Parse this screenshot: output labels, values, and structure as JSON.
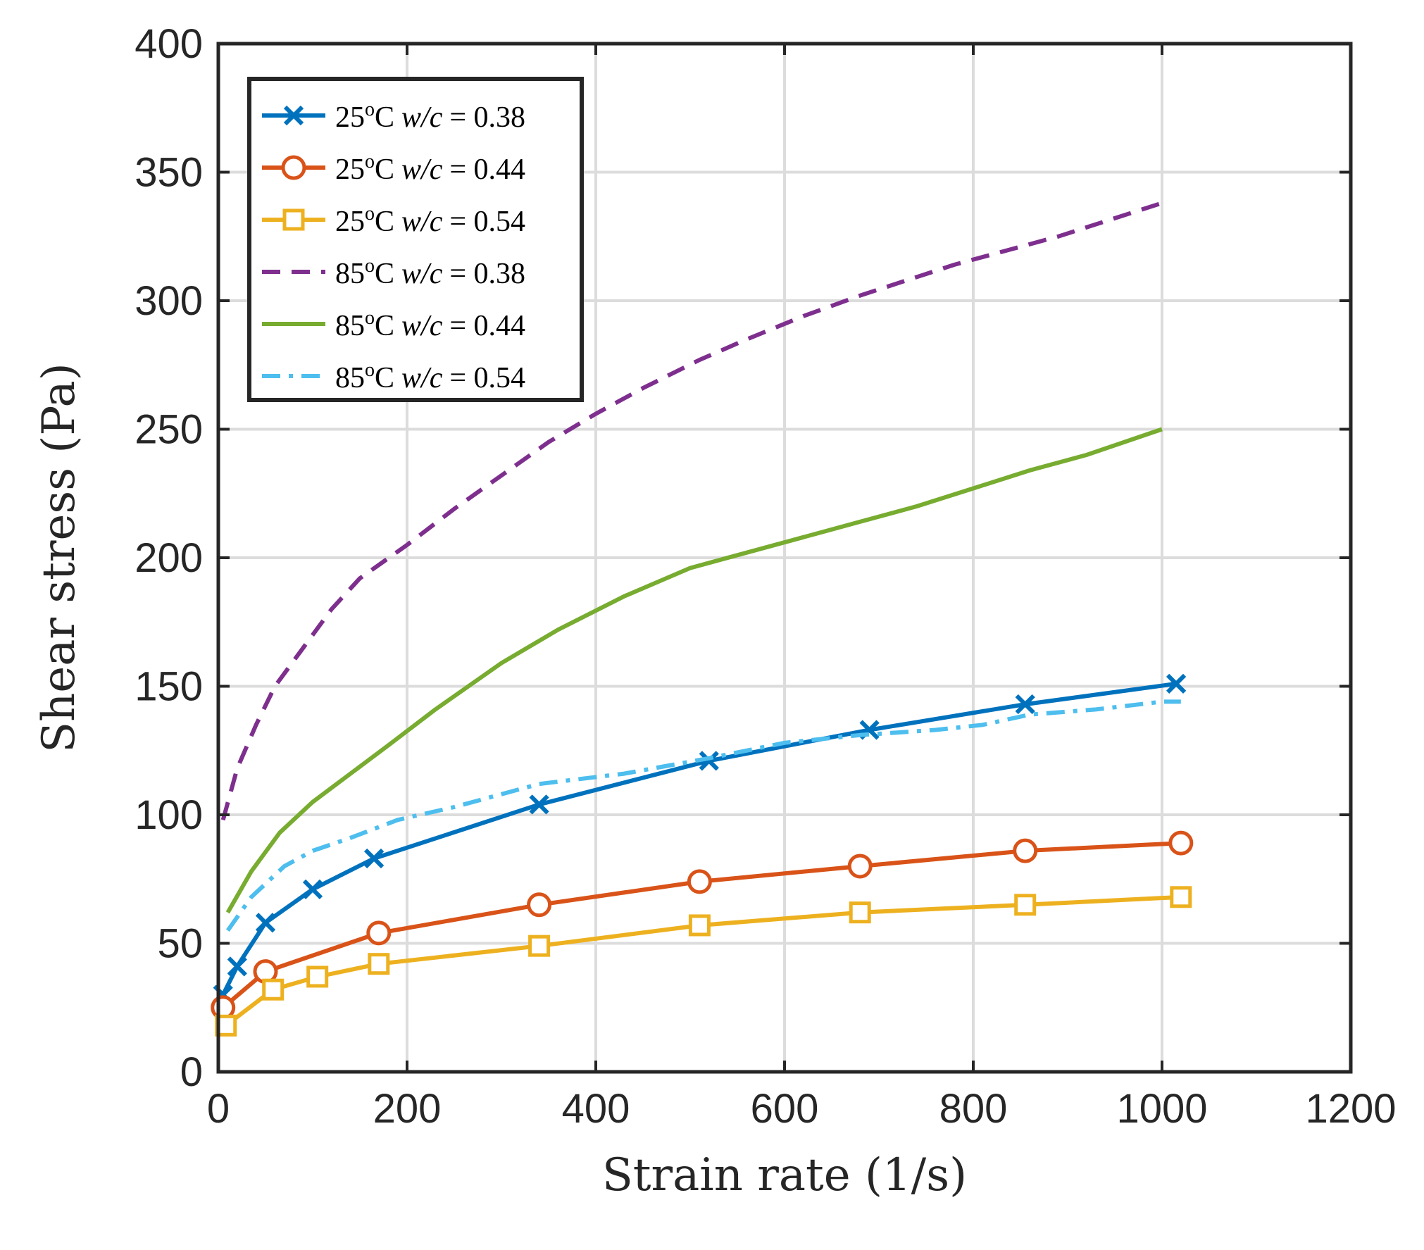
{
  "chart_data": {
    "type": "line",
    "title": "",
    "xlabel": "Strain rate (1/s)",
    "ylabel": "Shear stress (Pa)",
    "xlim": [
      0,
      1200
    ],
    "ylim": [
      0,
      400
    ],
    "xticks": [
      0,
      200,
      400,
      600,
      800,
      1000,
      1200
    ],
    "yticks": [
      0,
      50,
      100,
      150,
      200,
      250,
      300,
      350,
      400
    ],
    "grid": true,
    "legend_position": "top-left",
    "series": [
      {
        "name": "25°C w/c = 0.38",
        "legend": {
          "temp": "25",
          "deg": "o",
          "unit": "C",
          "wc": "w/c",
          "eq": "= 0.38"
        },
        "color": "#0072BD",
        "dash": "solid",
        "marker": "x",
        "x": [
          5,
          20,
          50,
          100,
          165,
          340,
          520,
          690,
          855,
          1015
        ],
        "y": [
          30,
          41,
          58,
          71,
          83,
          104,
          121,
          133,
          143,
          151
        ]
      },
      {
        "name": "25°C w/c = 0.44",
        "legend": {
          "temp": "25",
          "deg": "o",
          "unit": "C",
          "wc": "w/c",
          "eq": "= 0.44"
        },
        "color": "#D95319",
        "dash": "solid",
        "marker": "circle",
        "x": [
          5,
          50,
          170,
          340,
          510,
          680,
          855,
          1020
        ],
        "y": [
          25,
          39,
          54,
          65,
          74,
          80,
          86,
          89
        ]
      },
      {
        "name": "25°C w/c = 0.54",
        "legend": {
          "temp": "25",
          "deg": "o",
          "unit": "C",
          "wc": "w/c",
          "eq": "= 0.54"
        },
        "color": "#EDB120",
        "dash": "solid",
        "marker": "square",
        "x": [
          8,
          58,
          105,
          170,
          340,
          510,
          680,
          855,
          1020
        ],
        "y": [
          18,
          32,
          37,
          42,
          49,
          57,
          62,
          65,
          68
        ]
      },
      {
        "name": "85°C w/c = 0.38",
        "legend": {
          "temp": "85",
          "deg": "o",
          "unit": "C",
          "wc": "w/c",
          "eq": "= 0.38"
        },
        "color": "#7E2F8E",
        "dash": "dashed",
        "marker": "none",
        "x": [
          5,
          20,
          40,
          60,
          90,
          120,
          150,
          200,
          250,
          300,
          350,
          400,
          450,
          510,
          560,
          620,
          680,
          730,
          780,
          840,
          890,
          1000
        ],
        "y": [
          98,
          118,
          135,
          150,
          165,
          180,
          192,
          205,
          219,
          232,
          245,
          256,
          266,
          277,
          285,
          294,
          302,
          308,
          314,
          320,
          325,
          338
        ]
      },
      {
        "name": "85°C w/c = 0.44",
        "legend": {
          "temp": "85",
          "deg": "o",
          "unit": "C",
          "wc": "w/c",
          "eq": "= 0.44"
        },
        "color": "#77AC30",
        "dash": "solid",
        "marker": "none",
        "x": [
          10,
          35,
          65,
          100,
          140,
          180,
          230,
          300,
          360,
          430,
          500,
          560,
          620,
          680,
          740,
          800,
          860,
          920,
          1000
        ],
        "y": [
          62,
          78,
          93,
          105,
          116,
          127,
          141,
          159,
          172,
          185,
          196,
          202,
          208,
          214,
          220,
          227,
          234,
          240,
          250
        ]
      },
      {
        "name": "85°C w/c = 0.54",
        "legend": {
          "temp": "85",
          "deg": "o",
          "unit": "C",
          "wc": "w/c",
          "eq": "= 0.54"
        },
        "color": "#4DBEEE",
        "dash": "dashdot",
        "marker": "none",
        "x": [
          10,
          35,
          70,
          100,
          140,
          190,
          250,
          340,
          430,
          520,
          600,
          680,
          760,
          810,
          860,
          930,
          1000,
          1020
        ],
        "y": [
          55,
          68,
          80,
          86,
          91,
          98,
          103,
          112,
          116,
          122,
          128,
          131,
          133,
          135,
          139,
          141,
          144,
          144
        ]
      }
    ]
  }
}
